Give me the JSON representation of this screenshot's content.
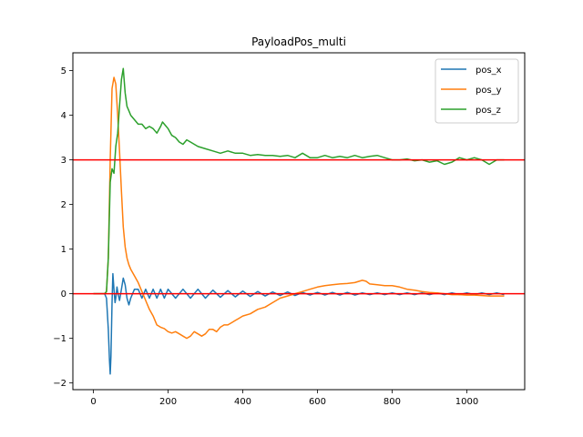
{
  "chart_data": {
    "type": "line",
    "title": "PayloadPos_multi",
    "xlabel": "",
    "ylabel": "",
    "xlim": [
      -55,
      1155
    ],
    "ylim": [
      -2.15,
      5.4
    ],
    "xticks": [
      0,
      200,
      400,
      600,
      800,
      1000
    ],
    "yticks": [
      -2,
      -1,
      0,
      1,
      2,
      3,
      4,
      5
    ],
    "grid": false,
    "legend_position": "top-right",
    "hlines": [
      {
        "y": 3,
        "color": "#ff0000"
      },
      {
        "y": 0,
        "color": "#ff0000"
      }
    ],
    "series": [
      {
        "name": "pos_x",
        "color": "#1f77b4",
        "x": [
          0,
          30,
          35,
          40,
          43,
          45,
          47,
          50,
          52,
          55,
          58,
          60,
          63,
          66,
          70,
          75,
          80,
          85,
          90,
          95,
          100,
          110,
          120,
          130,
          140,
          150,
          160,
          170,
          180,
          190,
          200,
          220,
          240,
          260,
          280,
          300,
          320,
          340,
          360,
          380,
          400,
          420,
          440,
          460,
          480,
          500,
          520,
          540,
          560,
          580,
          600,
          620,
          640,
          660,
          680,
          700,
          720,
          740,
          760,
          780,
          800,
          820,
          840,
          860,
          880,
          900,
          920,
          940,
          960,
          980,
          1000,
          1020,
          1040,
          1060,
          1080,
          1100
        ],
        "y": [
          0,
          0,
          -0.1,
          -0.8,
          -1.5,
          -1.8,
          -1.4,
          -0.2,
          0.45,
          0.1,
          -0.2,
          -0.1,
          0.15,
          0.0,
          -0.15,
          0.1,
          0.35,
          0.2,
          -0.1,
          -0.25,
          -0.1,
          0.1,
          0.1,
          -0.1,
          0.1,
          -0.1,
          0.1,
          -0.1,
          0.1,
          -0.1,
          0.1,
          -0.1,
          0.1,
          -0.1,
          0.1,
          -0.1,
          0.08,
          -0.08,
          0.07,
          -0.07,
          0.06,
          -0.06,
          0.05,
          -0.05,
          0.04,
          -0.04,
          0.04,
          -0.04,
          0.03,
          -0.03,
          0.03,
          -0.03,
          0.03,
          -0.03,
          0.03,
          -0.03,
          0.02,
          -0.02,
          0.02,
          -0.02,
          0.02,
          -0.02,
          0.02,
          -0.02,
          0.02,
          -0.02,
          0.02,
          -0.02,
          0.02,
          -0.02,
          0.02,
          -0.02,
          0.02,
          -0.02,
          0.02,
          -0.02
        ]
      },
      {
        "name": "pos_y",
        "color": "#ff7f0e",
        "x": [
          0,
          30,
          35,
          40,
          45,
          50,
          55,
          60,
          65,
          70,
          75,
          80,
          85,
          90,
          95,
          100,
          110,
          120,
          130,
          140,
          150,
          160,
          170,
          180,
          190,
          200,
          210,
          220,
          230,
          240,
          250,
          260,
          270,
          280,
          290,
          300,
          310,
          320,
          330,
          340,
          350,
          360,
          370,
          380,
          390,
          400,
          420,
          440,
          460,
          480,
          500,
          520,
          540,
          560,
          580,
          600,
          620,
          640,
          660,
          680,
          700,
          720,
          730,
          740,
          760,
          780,
          800,
          820,
          840,
          860,
          880,
          900,
          920,
          940,
          960,
          980,
          1000,
          1020,
          1040,
          1060,
          1080,
          1100
        ],
        "y": [
          0,
          0,
          0.05,
          0.8,
          3.0,
          4.6,
          4.85,
          4.7,
          4.0,
          3.2,
          2.3,
          1.5,
          1.05,
          0.8,
          0.65,
          0.55,
          0.4,
          0.25,
          0.05,
          -0.15,
          -0.35,
          -0.5,
          -0.7,
          -0.75,
          -0.78,
          -0.85,
          -0.88,
          -0.85,
          -0.9,
          -0.95,
          -1.0,
          -0.95,
          -0.85,
          -0.9,
          -0.95,
          -0.9,
          -0.8,
          -0.8,
          -0.85,
          -0.75,
          -0.7,
          -0.7,
          -0.65,
          -0.6,
          -0.55,
          -0.5,
          -0.45,
          -0.35,
          -0.3,
          -0.2,
          -0.1,
          -0.05,
          0.0,
          0.05,
          0.1,
          0.15,
          0.18,
          0.2,
          0.22,
          0.23,
          0.25,
          0.3,
          0.28,
          0.22,
          0.2,
          0.18,
          0.18,
          0.15,
          0.1,
          0.08,
          0.05,
          0.03,
          0.02,
          0.0,
          -0.02,
          -0.02,
          -0.03,
          -0.03,
          -0.04,
          -0.05,
          -0.05,
          -0.05
        ]
      },
      {
        "name": "pos_z",
        "color": "#2ca02c",
        "x": [
          0,
          30,
          35,
          40,
          45,
          50,
          55,
          60,
          65,
          70,
          75,
          80,
          85,
          90,
          95,
          100,
          110,
          120,
          130,
          140,
          150,
          160,
          170,
          180,
          185,
          190,
          195,
          200,
          210,
          220,
          230,
          240,
          250,
          260,
          280,
          300,
          320,
          340,
          360,
          380,
          400,
          420,
          440,
          460,
          480,
          500,
          520,
          540,
          560,
          580,
          600,
          620,
          640,
          660,
          680,
          700,
          720,
          740,
          760,
          780,
          800,
          820,
          840,
          860,
          880,
          900,
          920,
          940,
          960,
          980,
          1000,
          1020,
          1040,
          1060,
          1080,
          1100
        ],
        "y": [
          0,
          0,
          0.05,
          0.8,
          2.5,
          2.8,
          2.7,
          3.3,
          3.6,
          4.2,
          4.8,
          5.05,
          4.5,
          4.2,
          4.1,
          4.0,
          3.9,
          3.8,
          3.8,
          3.7,
          3.75,
          3.7,
          3.6,
          3.75,
          3.85,
          3.8,
          3.75,
          3.7,
          3.55,
          3.5,
          3.4,
          3.35,
          3.45,
          3.4,
          3.3,
          3.25,
          3.2,
          3.15,
          3.2,
          3.15,
          3.15,
          3.1,
          3.12,
          3.1,
          3.1,
          3.08,
          3.1,
          3.05,
          3.15,
          3.05,
          3.05,
          3.1,
          3.05,
          3.08,
          3.05,
          3.1,
          3.05,
          3.08,
          3.1,
          3.05,
          3.0,
          3.0,
          3.02,
          2.98,
          3.0,
          2.95,
          2.98,
          2.9,
          2.95,
          3.05,
          3.0,
          3.05,
          3.0,
          2.9,
          3.0,
          3.0
        ]
      }
    ]
  }
}
